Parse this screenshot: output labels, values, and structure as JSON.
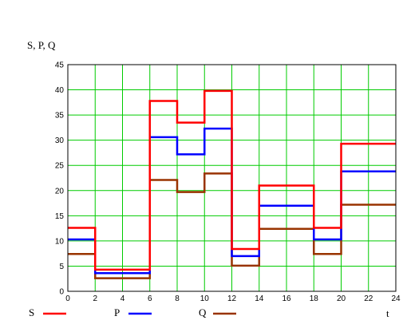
{
  "chart_data": {
    "type": "line",
    "step": true,
    "ylabel": "S, P, Q",
    "xlabel": "t",
    "xlim": [
      0,
      24
    ],
    "ylim": [
      0,
      45
    ],
    "xticks": [
      0,
      2,
      4,
      6,
      8,
      10,
      12,
      14,
      16,
      18,
      20,
      22,
      24
    ],
    "yticks": [
      0,
      5,
      10,
      15,
      20,
      25,
      30,
      35,
      40,
      45
    ],
    "grid": true,
    "grid_color": "#00cc00",
    "legend_position": "bottom",
    "x_edges": [
      0,
      2,
      6,
      8,
      10,
      12,
      14,
      18,
      20,
      24
    ],
    "series": [
      {
        "name": "S",
        "color": "#ff0000",
        "values": [
          12.6,
          4.3,
          37.8,
          33.5,
          39.8,
          8.4,
          21.0,
          12.6,
          29.3
        ]
      },
      {
        "name": "P",
        "color": "#0000ff",
        "values": [
          10.3,
          3.6,
          30.6,
          27.2,
          32.3,
          7.0,
          17.0,
          10.3,
          23.8
        ]
      },
      {
        "name": "Q",
        "color": "#993300",
        "values": [
          7.4,
          2.6,
          22.1,
          19.7,
          23.4,
          5.1,
          12.4,
          7.4,
          17.2
        ]
      }
    ]
  }
}
